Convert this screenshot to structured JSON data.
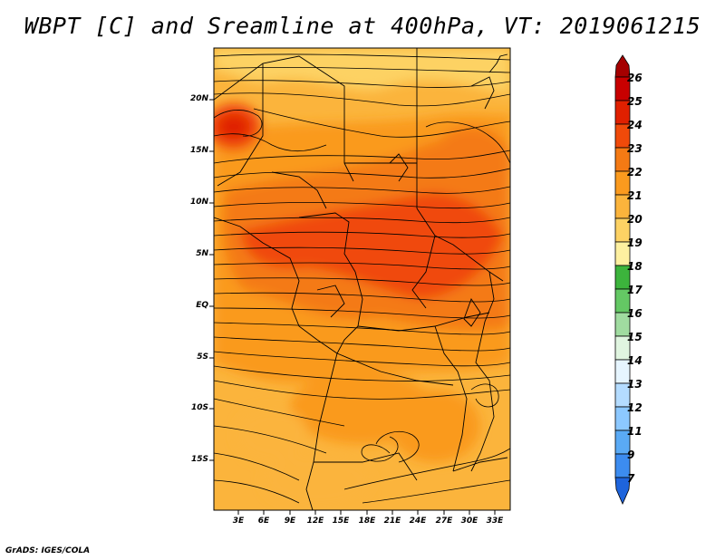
{
  "title": "WBPT [C] and Sreamline at 400hPa, VT: 2019061215",
  "footer": "GrADS: IGES/COLA",
  "map": {
    "lat_labels": [
      "20N",
      "15N",
      "10N",
      "5N",
      "EQ",
      "5S",
      "10S",
      "15S"
    ],
    "lon_labels": [
      "3E",
      "6E",
      "9E",
      "12E",
      "15E",
      "18E",
      "21E",
      "24E",
      "27E",
      "30E",
      "33E"
    ]
  },
  "colorbar": {
    "labels": [
      "26",
      "25",
      "24",
      "23",
      "22",
      "21",
      "20",
      "19",
      "18",
      "17",
      "16",
      "15",
      "14",
      "13",
      "12",
      "11",
      "9",
      "7"
    ],
    "colors": [
      "#a50000",
      "#c80000",
      "#e02000",
      "#f04a0a",
      "#f47a14",
      "#fa9a1e",
      "#fbb43c",
      "#fdd264",
      "#fef0a0",
      "#3cb43c",
      "#64c864",
      "#a0dca0",
      "#e0f5e0",
      "#e6f5ff",
      "#b4dcff",
      "#8cc8ff",
      "#5aaaf5",
      "#3c8cf0",
      "#1e64dc"
    ]
  }
}
